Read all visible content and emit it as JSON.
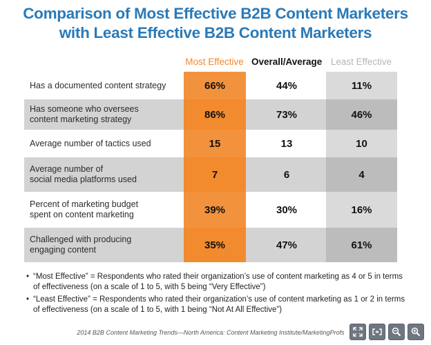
{
  "chart_data": {
    "type": "table",
    "title_lines": [
      "Comparison of Most Effective B2B Content Marketers",
      "with Least Effective B2B Content Marketers"
    ],
    "columns": [
      "Most Effective",
      "Overall/Average",
      "Least Effective"
    ],
    "rows": [
      {
        "label_lines": [
          "Has a documented content strategy"
        ],
        "values": [
          "66%",
          "44%",
          "11%"
        ]
      },
      {
        "label_lines": [
          "Has someone who oversees",
          " content marketing strategy"
        ],
        "values": [
          "86%",
          "73%",
          "46%"
        ]
      },
      {
        "label_lines": [
          "Average number of tactics used"
        ],
        "values": [
          "15",
          "13",
          "10"
        ]
      },
      {
        "label_lines": [
          "Average number of",
          "social media platforms used"
        ],
        "values": [
          "7",
          "6",
          "4"
        ]
      },
      {
        "label_lines": [
          "Percent of marketing budget",
          "spent on content marketing"
        ],
        "values": [
          "39%",
          "30%",
          "16%"
        ]
      },
      {
        "label_lines": [
          "Challenged with producing",
          "engaging content"
        ],
        "values": [
          "35%",
          "47%",
          "61%"
        ]
      }
    ],
    "colors": {
      "title": "#2a7ab8",
      "most_effective": "#f2923c",
      "least_effective": "#bcbcbc",
      "shaded_row": "#d3d3d3"
    }
  },
  "notes": [
    {
      "bullet": "•",
      "lines": [
        "“Most Effective” = Respondents who rated their organization’s use of content marketing as 4 or 5 in terms",
        "of effectiveness (on a scale of 1 to 5, with 5 being “Very Effective”)"
      ]
    },
    {
      "bullet": "•",
      "lines": [
        "“Least Effective” = Respondents who rated their organization’s use of content marketing as 1 or 2 in terms",
        "of effectiveness (on a scale of 1 to 5, with 1 being “Not At All Effective”)"
      ]
    }
  ],
  "source": "2014 B2B Content Marketing Trends—North America: Content Marketing Institute/MarketingProfs",
  "toolbar": {
    "icons": [
      "fullscreen-icon",
      "fit-to-width-icon",
      "zoom-out-icon",
      "zoom-in-icon"
    ]
  }
}
